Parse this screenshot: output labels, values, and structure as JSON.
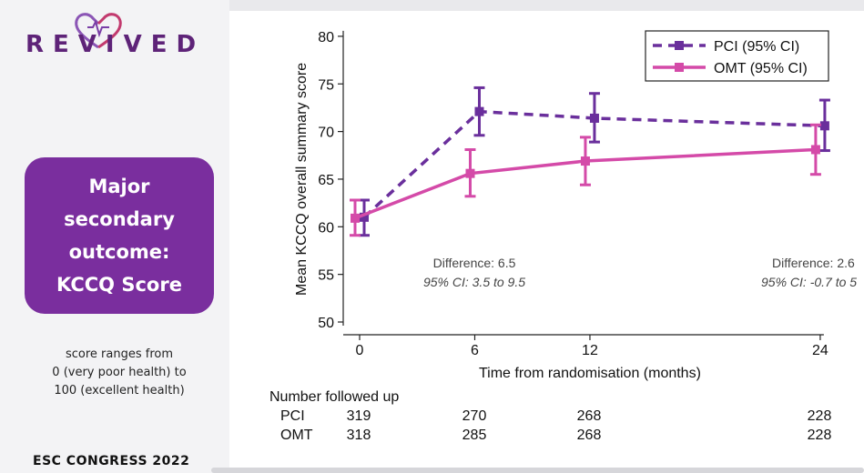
{
  "logo": {
    "text": "REVIVED"
  },
  "sidebar": {
    "box_lines": [
      "Major",
      "secondary",
      "outcome:",
      "KCCQ Score"
    ],
    "range_lines": [
      "score ranges from",
      "0 (very poor health) to",
      "100 (excellent health)"
    ],
    "footer": "ESC CONGRESS 2022"
  },
  "colors": {
    "pci": "#6a2f9c",
    "omt": "#d44aa8",
    "box": "#7a2e9e",
    "brand": "#5e2378"
  },
  "chart_data": {
    "type": "line",
    "ylabel": "Mean KCCQ overall summary score",
    "xlabel": "Time from randomisation (months)",
    "ylim": [
      50,
      80
    ],
    "yticks": [
      50,
      55,
      60,
      65,
      70,
      75,
      80
    ],
    "xticks": [
      0,
      6,
      12,
      24
    ],
    "x": [
      0,
      6,
      12,
      24
    ],
    "series": [
      {
        "name": "PCI (95% CI)",
        "style": "dashed",
        "color": "#6a2f9c",
        "values": [
          61.0,
          72.1,
          71.4,
          70.6
        ],
        "ci_low": [
          59.1,
          69.6,
          68.9,
          68.0
        ],
        "ci_high": [
          62.8,
          74.6,
          74.0,
          73.3
        ]
      },
      {
        "name": "OMT (95% CI)",
        "style": "solid",
        "color": "#d44aa8",
        "values": [
          60.9,
          65.6,
          66.9,
          68.1
        ],
        "ci_low": [
          59.1,
          63.2,
          64.4,
          65.5
        ],
        "ci_high": [
          62.8,
          68.1,
          69.4,
          70.7
        ]
      }
    ],
    "legend": "top-right",
    "annotations": [
      {
        "line1": "Difference: 6.5",
        "line2": "95% CI: 3.5 to 9.5"
      },
      {
        "line1": "Difference: 2.6",
        "line2": "95% CI: -0.7 to 5"
      }
    ]
  },
  "followup": {
    "title": "Number followed up",
    "rows": [
      {
        "label": "PCI",
        "values": [
          "319",
          "270",
          "268",
          "228"
        ]
      },
      {
        "label": "OMT",
        "values": [
          "318",
          "285",
          "268",
          "228"
        ]
      }
    ]
  }
}
